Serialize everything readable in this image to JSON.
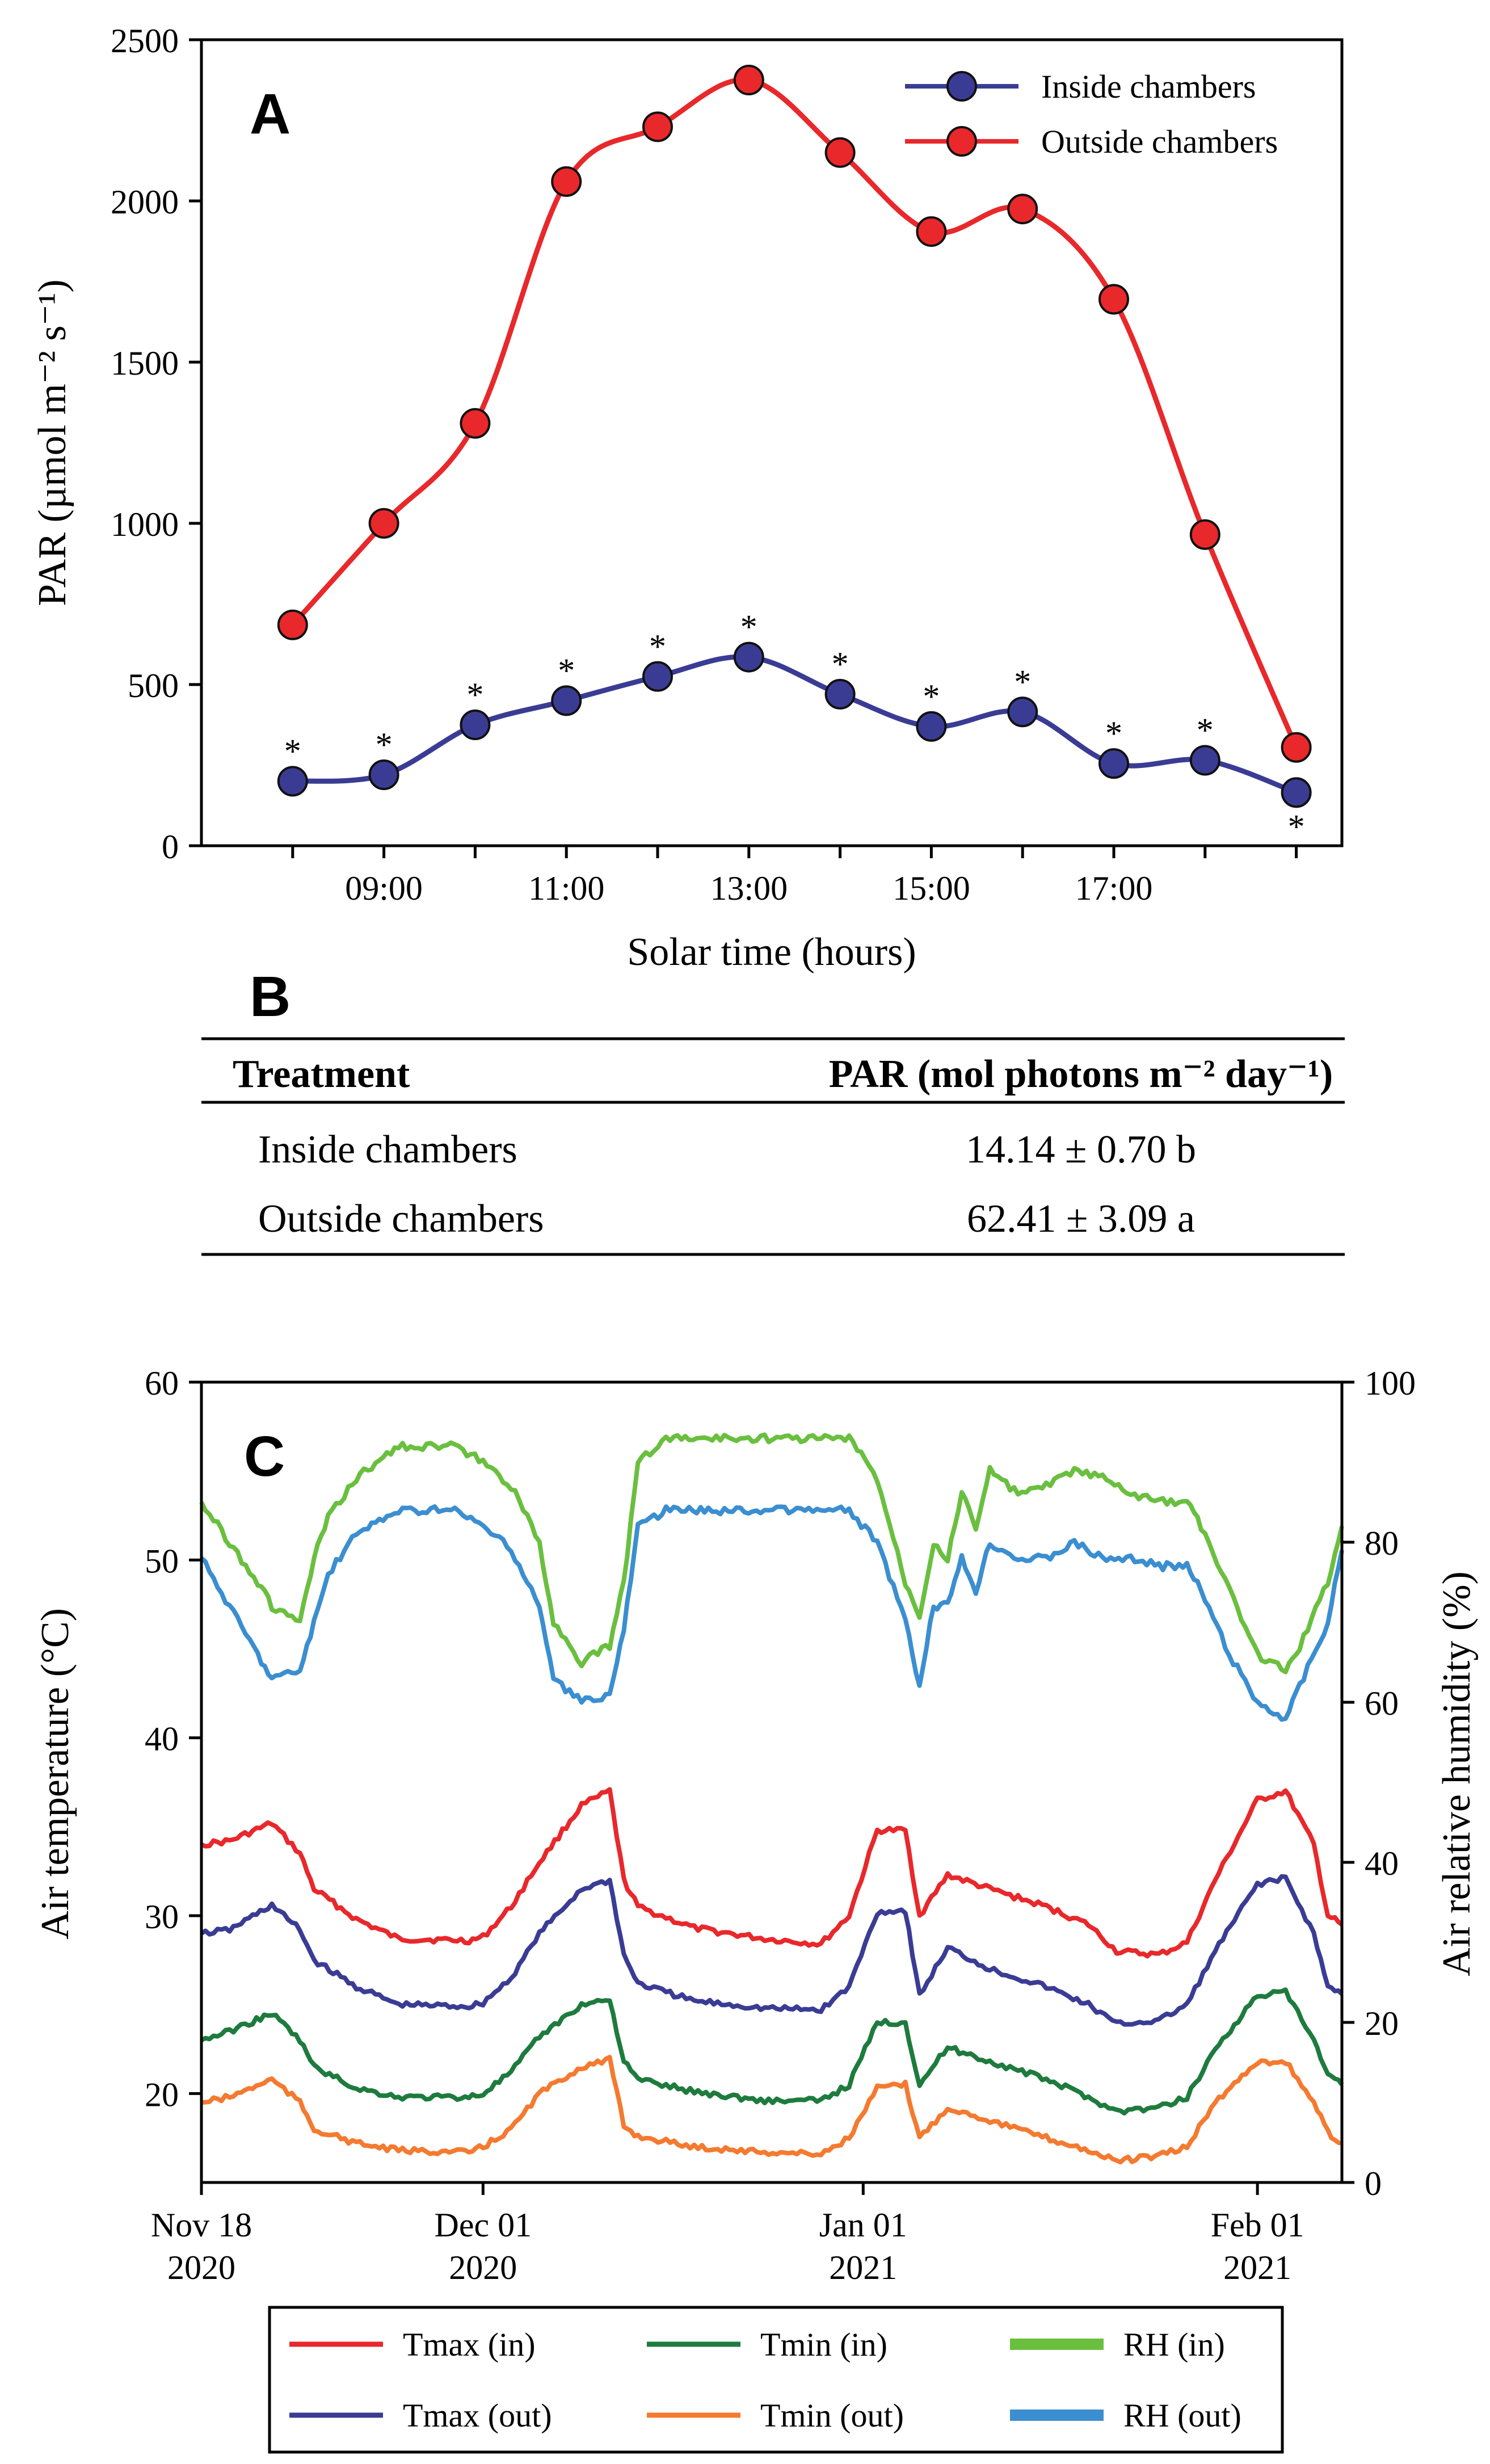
{
  "panel_a": {
    "letter": "A",
    "chart_data": {
      "type": "line",
      "xlabel": "Solar time (hours)",
      "ylabel": "PAR (µmol m⁻² s⁻¹)",
      "x": [
        8,
        9,
        10,
        11,
        12,
        13,
        14,
        15,
        16,
        17,
        18,
        19
      ],
      "xlim": [
        7,
        19.5
      ],
      "x_ticks": [
        8,
        9,
        10,
        11,
        12,
        13,
        14,
        15,
        16,
        17,
        18,
        19
      ],
      "x_tick_labels": [
        "",
        "09:00",
        "",
        "11:00",
        "",
        "13:00",
        "",
        "15:00",
        "",
        "17:00",
        "",
        ""
      ],
      "ylim": [
        0,
        2500
      ],
      "y_ticks": [
        0,
        500,
        1000,
        1500,
        2000,
        2500
      ],
      "y_tick_labels": [
        "0",
        "500",
        "1000",
        "1500",
        "2000",
        "2500"
      ],
      "series": [
        {
          "name": "Inside chambers",
          "color": "#3a3c94",
          "values": [
            200,
            220,
            375,
            450,
            525,
            585,
            470,
            370,
            415,
            255,
            265,
            165
          ]
        },
        {
          "name": "Outside chambers",
          "color": "#e8282b",
          "values": [
            685,
            1000,
            1310,
            2060,
            2230,
            2375,
            2150,
            1905,
            1975,
            1695,
            965,
            305
          ]
        }
      ],
      "annotations": {
        "marker": "*",
        "label_positions": [
          "above",
          "above",
          "above",
          "above",
          "above",
          "above",
          "above",
          "above",
          "above",
          "above",
          "above",
          "below"
        ]
      }
    }
  },
  "panel_b": {
    "letter": "B",
    "table": {
      "headers": [
        "Treatment",
        "PAR (mol photons m⁻² day⁻¹)"
      ],
      "rows": [
        [
          "Inside chambers",
          "14.14 ± 0.70 b"
        ],
        [
          "Outside chambers",
          "62.41 ± 3.09 a"
        ]
      ]
    }
  },
  "panel_c": {
    "letter": "C",
    "chart_data": {
      "type": "line",
      "ylabel_left": "Air temperature (°C)",
      "ylabel_right": "Air relative humidity (%)",
      "xlim_days": [
        0,
        81
      ],
      "x_ticks": [
        {
          "day": 0,
          "line1": "Nov 18",
          "line2": "2020"
        },
        {
          "day": 20,
          "line1": "Dec 01",
          "line2": "2020"
        },
        {
          "day": 47,
          "line1": "Jan 01",
          "line2": "2021"
        },
        {
          "day": 75,
          "line1": "Feb 01",
          "line2": "2021"
        }
      ],
      "ylim_left": [
        15,
        60
      ],
      "y_ticks_left": [
        "20",
        "30",
        "40",
        "50",
        "60"
      ],
      "ylim_right": [
        0,
        100
      ],
      "y_ticks_right": [
        "0",
        "20",
        "40",
        "60",
        "80",
        "100"
      ],
      "series": [
        {
          "name": "Tmax (in)",
          "axis": "left",
          "color": "#e8282b",
          "points": [
            [
              0,
              34
            ],
            [
              2,
              34.2
            ],
            [
              5,
              35.2
            ],
            [
              7,
              33.5
            ],
            [
              8,
              31.5
            ],
            [
              11,
              29.8
            ],
            [
              14,
              28.7
            ],
            [
              19,
              28.6
            ],
            [
              20,
              28.8
            ],
            [
              22,
              30.5
            ],
            [
              24,
              33
            ],
            [
              27,
              36.2
            ],
            [
              29,
              37
            ],
            [
              30,
              32
            ],
            [
              31,
              30.5
            ],
            [
              35,
              29.3
            ],
            [
              40,
              28.7
            ],
            [
              44,
              28.4
            ],
            [
              46,
              30
            ],
            [
              48,
              34.8
            ],
            [
              50,
              34.8
            ],
            [
              51,
              30
            ],
            [
              53,
              32.3
            ],
            [
              56,
              31.5
            ],
            [
              60,
              30.5
            ],
            [
              63,
              29.5
            ],
            [
              65,
              28
            ],
            [
              68,
              27.8
            ],
            [
              70,
              28.5
            ],
            [
              72,
              32
            ],
            [
              75,
              36.5
            ],
            [
              77,
              37
            ],
            [
              79,
              34
            ],
            [
              80,
              30
            ],
            [
              81,
              29.5
            ]
          ]
        },
        {
          "name": "Tmax (out)",
          "axis": "left",
          "color": "#3a3c94",
          "points": [
            [
              0,
              29
            ],
            [
              2,
              29.2
            ],
            [
              5,
              30.6
            ],
            [
              7,
              29.2
            ],
            [
              8,
              27.5
            ],
            [
              11,
              26
            ],
            [
              14,
              25
            ],
            [
              19,
              24.9
            ],
            [
              20,
              25.1
            ],
            [
              22,
              26.5
            ],
            [
              24,
              29
            ],
            [
              27,
              31.5
            ],
            [
              29,
              32
            ],
            [
              30,
              27.8
            ],
            [
              31,
              26.2
            ],
            [
              35,
              25.2
            ],
            [
              40,
              24.8
            ],
            [
              44,
              24.7
            ],
            [
              46,
              26
            ],
            [
              48,
              30.2
            ],
            [
              50,
              30.3
            ],
            [
              51,
              25.5
            ],
            [
              53,
              28.2
            ],
            [
              56,
              27
            ],
            [
              60,
              26
            ],
            [
              63,
              25
            ],
            [
              65,
              23.9
            ],
            [
              68,
              24.1
            ],
            [
              70,
              25
            ],
            [
              72,
              28
            ],
            [
              75,
              31.8
            ],
            [
              77,
              32.1
            ],
            [
              79,
              29
            ],
            [
              80,
              26
            ],
            [
              81,
              25.6
            ]
          ]
        },
        {
          "name": "Tmin (in)",
          "axis": "left",
          "color": "#1e7b3e",
          "points": [
            [
              0,
              23
            ],
            [
              2,
              23.5
            ],
            [
              5,
              24.5
            ],
            [
              7,
              23
            ],
            [
              8,
              21.5
            ],
            [
              11,
              20.3
            ],
            [
              14,
              19.8
            ],
            [
              19,
              19.8
            ],
            [
              20,
              20
            ],
            [
              22,
              21.2
            ],
            [
              24,
              23.2
            ],
            [
              27,
              25
            ],
            [
              29,
              25.3
            ],
            [
              30,
              21.8
            ],
            [
              31,
              20.8
            ],
            [
              35,
              20.1
            ],
            [
              40,
              19.6
            ],
            [
              44,
              19.6
            ],
            [
              46,
              20.5
            ],
            [
              48,
              24
            ],
            [
              50,
              24
            ],
            [
              51,
              20.5
            ],
            [
              53,
              22.6
            ],
            [
              56,
              21.8
            ],
            [
              60,
              20.8
            ],
            [
              63,
              19.8
            ],
            [
              65,
              19
            ],
            [
              68,
              19.2
            ],
            [
              70,
              19.8
            ],
            [
              72,
              22.5
            ],
            [
              75,
              25.5
            ],
            [
              77,
              25.7
            ],
            [
              79,
              23
            ],
            [
              80,
              21
            ],
            [
              81,
              20.5
            ]
          ]
        },
        {
          "name": "Tmin (out)",
          "axis": "left",
          "color": "#f47a30",
          "points": [
            [
              0,
              19.5
            ],
            [
              2,
              19.8
            ],
            [
              5,
              20.8
            ],
            [
              7,
              19.5
            ],
            [
              8,
              18
            ],
            [
              11,
              17.2
            ],
            [
              14,
              16.8
            ],
            [
              19,
              16.7
            ],
            [
              20,
              17
            ],
            [
              22,
              18
            ],
            [
              24,
              20
            ],
            [
              27,
              21.5
            ],
            [
              29,
              21.9
            ],
            [
              30,
              18.2
            ],
            [
              31,
              17.6
            ],
            [
              35,
              17
            ],
            [
              40,
              16.7
            ],
            [
              44,
              16.6
            ],
            [
              46,
              17.5
            ],
            [
              48,
              20.3
            ],
            [
              50,
              20.5
            ],
            [
              51,
              17.5
            ],
            [
              53,
              19.2
            ],
            [
              56,
              18.5
            ],
            [
              60,
              17.5
            ],
            [
              63,
              16.8
            ],
            [
              65,
              16.2
            ],
            [
              68,
              16.5
            ],
            [
              70,
              17
            ],
            [
              72,
              19.5
            ],
            [
              75,
              21.8
            ],
            [
              77,
              21.8
            ],
            [
              79,
              19.5
            ],
            [
              80,
              17.8
            ],
            [
              81,
              17.2
            ]
          ]
        },
        {
          "name": "RH (in)",
          "axis": "right",
          "color": "#6abf3f",
          "points": [
            [
              0,
              85
            ],
            [
              2,
              80
            ],
            [
              4,
              75
            ],
            [
              5,
              72
            ],
            [
              7,
              70
            ],
            [
              8,
              78
            ],
            [
              9,
              83
            ],
            [
              11,
              88
            ],
            [
              14,
              92
            ],
            [
              18,
              92
            ],
            [
              20,
              90
            ],
            [
              22,
              87
            ],
            [
              24,
              80
            ],
            [
              25,
              70
            ],
            [
              27,
              65
            ],
            [
              29,
              67
            ],
            [
              30,
              75
            ],
            [
              31,
              90
            ],
            [
              33,
              93
            ],
            [
              36,
              93
            ],
            [
              40,
              93
            ],
            [
              46,
              93
            ],
            [
              48,
              88
            ],
            [
              50,
              75
            ],
            [
              51,
              71
            ],
            [
              52,
              80
            ],
            [
              53,
              78
            ],
            [
              54,
              86
            ],
            [
              55,
              82
            ],
            [
              56,
              89
            ],
            [
              58,
              86
            ],
            [
              60,
              87
            ],
            [
              62,
              89
            ],
            [
              64,
              88
            ],
            [
              66,
              86
            ],
            [
              68,
              85
            ],
            [
              70,
              85
            ],
            [
              71,
              82
            ],
            [
              73,
              74
            ],
            [
              75,
              66
            ],
            [
              77,
              64
            ],
            [
              78,
              67
            ],
            [
              80,
              75
            ],
            [
              81,
              82
            ]
          ]
        },
        {
          "name": "RH (out)",
          "axis": "right",
          "color": "#3b8ed0",
          "points": [
            [
              0,
              78
            ],
            [
              2,
              72
            ],
            [
              4,
              66
            ],
            [
              5,
              63
            ],
            [
              7,
              64
            ],
            [
              8,
              70
            ],
            [
              9,
              76
            ],
            [
              11,
              81
            ],
            [
              14,
              84
            ],
            [
              18,
              84
            ],
            [
              20,
              82
            ],
            [
              22,
              79
            ],
            [
              24,
              72
            ],
            [
              25,
              63
            ],
            [
              27,
              60
            ],
            [
              29,
              61
            ],
            [
              30,
              69
            ],
            [
              31,
              82
            ],
            [
              33,
              84
            ],
            [
              36,
              84
            ],
            [
              40,
              84
            ],
            [
              46,
              84
            ],
            [
              48,
              80
            ],
            [
              50,
              70
            ],
            [
              51,
              62
            ],
            [
              52,
              72
            ],
            [
              53,
              72
            ],
            [
              54,
              78
            ],
            [
              55,
              74
            ],
            [
              56,
              80
            ],
            [
              58,
              78
            ],
            [
              60,
              78
            ],
            [
              62,
              80
            ],
            [
              64,
              78
            ],
            [
              66,
              78
            ],
            [
              68,
              77
            ],
            [
              70,
              77
            ],
            [
              71,
              74
            ],
            [
              73,
              66
            ],
            [
              75,
              60
            ],
            [
              77,
              58
            ],
            [
              78,
              62
            ],
            [
              80,
              70
            ],
            [
              81,
              79
            ]
          ]
        }
      ]
    },
    "legend": [
      {
        "label": "Tmax (in)",
        "color": "#e8282b",
        "thick": false
      },
      {
        "label": "Tmin (in)",
        "color": "#1e7b3e",
        "thick": false
      },
      {
        "label": "RH (in)",
        "color": "#6abf3f",
        "thick": true
      },
      {
        "label": "Tmax (out)",
        "color": "#3a3c94",
        "thick": false
      },
      {
        "label": "Tmin (out)",
        "color": "#f47a30",
        "thick": false
      },
      {
        "label": "RH (out)",
        "color": "#3b8ed0",
        "thick": true
      }
    ]
  }
}
